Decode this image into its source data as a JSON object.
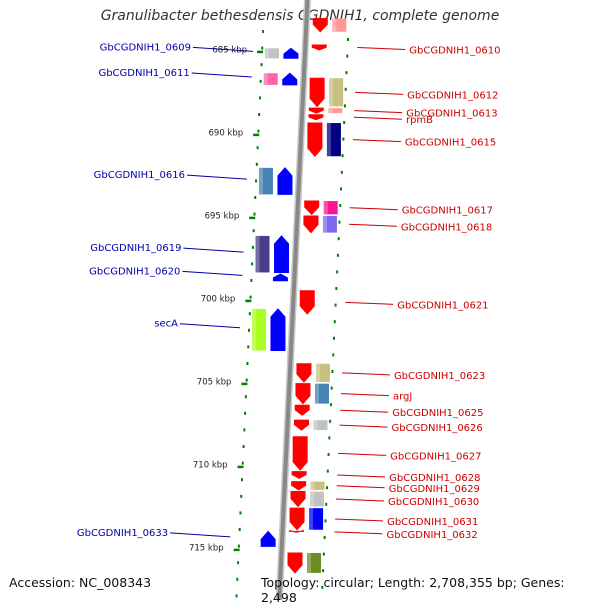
{
  "title": "Granulibacter bethesdensis CGDNIH1, complete genome",
  "footer": {
    "accession": "Accession: NC_008343",
    "summary": "Topology: circular; Length: 2,708,355 bp; Genes: 2,498"
  },
  "colors": {
    "forward": "#0000ff",
    "reverse": "#ff0000",
    "backbone": "#888888",
    "tick": "#008000",
    "left_label": "#0000aa",
    "right_label": "#cc0000"
  },
  "ticks": [
    {
      "label": "685 kbp",
      "y": 685
    },
    {
      "label": "690 kbp",
      "y": 690
    },
    {
      "label": "695 kbp",
      "y": 695
    },
    {
      "label": "700 kbp",
      "y": 700
    },
    {
      "label": "705 kbp",
      "y": 705
    },
    {
      "label": "710 kbp",
      "y": 710
    },
    {
      "label": "715 kbp",
      "y": 715
    }
  ],
  "forward_genes": [
    {
      "name": "GbCGDNIH1_0609",
      "start": 684.8,
      "end": 685.4,
      "cog": "#c2c2c2"
    },
    {
      "name": "GbCGDNIH1_0611",
      "start": 686.3,
      "end": 687.0,
      "cog": "#ff66aa"
    },
    {
      "name": "GbCGDNIH1_0616",
      "start": 692.0,
      "end": 693.6,
      "cog": "#4682b4"
    },
    {
      "name": "GbCGDNIH1_0619",
      "start": 696.1,
      "end": 698.3,
      "cog": "#483d8b"
    },
    {
      "name": "GbCGDNIH1_0620",
      "start": 698.4,
      "end": 698.8,
      "cog": ""
    },
    {
      "name": "secA",
      "start": 700.5,
      "end": 703.0,
      "cog": "#aaff22"
    },
    {
      "name": "GbCGDNIH1_0633",
      "start": 713.9,
      "end": 714.8,
      "cog": ""
    }
  ],
  "reverse_genes": [
    {
      "name": "",
      "start": 683.0,
      "end": 683.8,
      "cog": "#ff9999"
    },
    {
      "name": "GbCGDNIH1_0610",
      "start": 684.6,
      "end": 684.9,
      "cog": ""
    },
    {
      "name": "GbCGDNIH1_0612",
      "start": 686.6,
      "end": 688.3,
      "cog": "#c8c080"
    },
    {
      "name": "GbCGDNIH1_0613",
      "start": 688.4,
      "end": 688.7,
      "cog": "#ff9999"
    },
    {
      "name": "rpmB",
      "start": 688.8,
      "end": 689.1,
      "cog": ""
    },
    {
      "name": "GbCGDNIH1_0615",
      "start": 689.3,
      "end": 691.3,
      "cog": "#000080"
    },
    {
      "name": "GbCGDNIH1_0617",
      "start": 694.0,
      "end": 694.8,
      "cog": "#ff1493"
    },
    {
      "name": "GbCGDNIH1_0618",
      "start": 694.9,
      "end": 695.9,
      "cog": "#7b68ee"
    },
    {
      "name": "GbCGDNIH1_0621",
      "start": 699.4,
      "end": 700.8,
      "cog": ""
    },
    {
      "name": "GbCGDNIH1_0623",
      "start": 703.8,
      "end": 704.9,
      "cog": "#c8c080"
    },
    {
      "name": "argJ",
      "start": 705.0,
      "end": 706.2,
      "cog": "#4682b4"
    },
    {
      "name": "GbCGDNIH1_0625",
      "start": 706.3,
      "end": 706.9,
      "cog": ""
    },
    {
      "name": "GbCGDNIH1_0626",
      "start": 707.2,
      "end": 707.8,
      "cog": "#c2c2c2"
    },
    {
      "name": "GbCGDNIH1_0627",
      "start": 708.2,
      "end": 710.2,
      "cog": ""
    },
    {
      "name": "GbCGDNIH1_0628",
      "start": 710.3,
      "end": 710.7,
      "cog": ""
    },
    {
      "name": "GbCGDNIH1_0629",
      "start": 710.9,
      "end": 711.4,
      "cog": "#c8c080"
    },
    {
      "name": "GbCGDNIH1_0630",
      "start": 711.5,
      "end": 712.4,
      "cog": "#c2c2c2"
    },
    {
      "name": "GbCGDNIH1_0631",
      "start": 712.5,
      "end": 713.8,
      "cog": "#0000ff"
    },
    {
      "name": "GbCGDNIH1_0632",
      "start": 713.9,
      "end": 713.95,
      "cog": ""
    },
    {
      "name": "",
      "start": 715.2,
      "end": 716.4,
      "cog": "#6b8e23"
    }
  ]
}
